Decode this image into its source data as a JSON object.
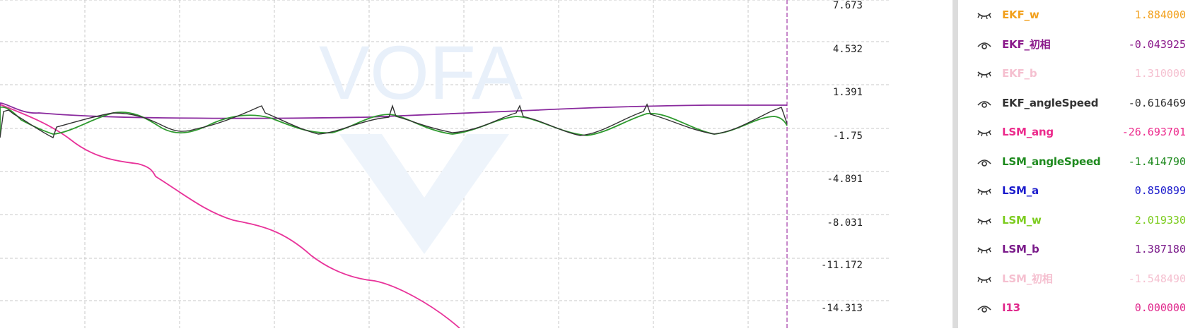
{
  "plot": {
    "watermark": "VOFA",
    "y_ticks": [
      "7.673",
      "4.532",
      "1.391",
      "-1.75",
      "-4.891",
      "-8.031",
      "-11.172",
      "-14.313"
    ],
    "colors": {
      "grid": "#c8c8c8",
      "cursor": "#a23aa6",
      "pink_trace": "#e8339a",
      "purple_trace": "#8a2a9e",
      "green_trace": "#2e9a2e",
      "black_trace": "#333333"
    }
  },
  "channels": [
    {
      "name": "EKF_w",
      "value": "1.884000",
      "color": "#f2a01c",
      "visible": false
    },
    {
      "name": "EKF_初相",
      "value": "-0.043925",
      "color": "#8b1a8b",
      "visible": true
    },
    {
      "name": "EKF_b",
      "value": "1.310000",
      "color": "#f5c0d0",
      "visible": false
    },
    {
      "name": "EKF_angleSpeed",
      "value": "-0.616469",
      "color": "#333333",
      "visible": true
    },
    {
      "name": "LSM_ang",
      "value": "-26.693701",
      "color": "#ec2a8c",
      "visible": false
    },
    {
      "name": "LSM_angleSpeed",
      "value": "-1.414790",
      "color": "#1e8a1e",
      "visible": true
    },
    {
      "name": "LSM_a",
      "value": "0.850899",
      "color": "#1a1acc",
      "visible": false
    },
    {
      "name": "LSM_w",
      "value": "2.019330",
      "color": "#7ccc1e",
      "visible": false
    },
    {
      "name": "LSM_b",
      "value": "1.387180",
      "color": "#7a1a8a",
      "visible": false
    },
    {
      "name": "LSM_初相",
      "value": "-1.548490",
      "color": "#f5c0d0",
      "visible": false
    },
    {
      "name": "I13",
      "value": "0.000000",
      "color": "#e0288c",
      "visible": true
    }
  ]
}
